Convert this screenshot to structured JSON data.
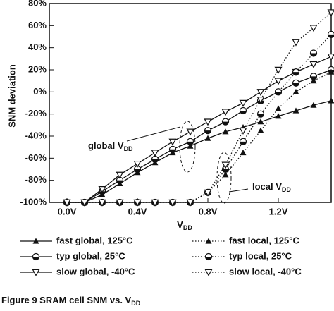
{
  "chart_data": {
    "type": "line",
    "x_label": {
      "text": "V",
      "sub": "DD"
    },
    "y_label": "SNM deviation",
    "caption": {
      "text": "Figure 9   SRAM cell SNM vs. V",
      "sub": "DD"
    },
    "annotations": [
      {
        "text": "global V",
        "sub": "DD"
      },
      {
        "text": "local V",
        "sub": "DD"
      }
    ],
    "x": [
      0,
      0.1,
      0.2,
      0.3,
      0.4,
      0.5,
      0.6,
      0.7,
      0.8,
      0.9,
      1.0,
      1.1,
      1.2,
      1.3,
      1.4,
      1.5
    ],
    "xlim": [
      -0.1,
      1.5
    ],
    "xticks": [
      {
        "value": 0,
        "label": "0.0V"
      },
      {
        "value": 0.4,
        "label": "0.4V"
      },
      {
        "value": 0.8,
        "label": "0.8V"
      },
      {
        "value": 1.2,
        "label": "1.2V"
      }
    ],
    "ylim": [
      -100,
      80
    ],
    "yticks": [
      {
        "value": -100,
        "label": "-100%"
      },
      {
        "value": -80,
        "label": "-80%"
      },
      {
        "value": -60,
        "label": "-60%"
      },
      {
        "value": -40,
        "label": "-40%"
      },
      {
        "value": -20,
        "label": "-20%"
      },
      {
        "value": 0,
        "label": "0%"
      },
      {
        "value": 20,
        "label": "20%"
      },
      {
        "value": 40,
        "label": "40%"
      },
      {
        "value": 60,
        "label": "60%"
      },
      {
        "value": 80,
        "label": "80%"
      }
    ],
    "series": [
      {
        "name": "fast global,  125°C",
        "color": "#111",
        "marker": "triangle-up-filled",
        "line": "solid",
        "values": [
          -100,
          -100,
          -93,
          -83,
          -73,
          -64,
          -55,
          -49,
          -42,
          -36,
          -32,
          -27,
          -22,
          -17,
          -12,
          -8
        ]
      },
      {
        "name": "typ global,    25°C",
        "color": "#111",
        "marker": "circle-half",
        "line": "solid",
        "values": [
          -100,
          -100,
          -90,
          -80,
          -70,
          -61,
          -52,
          -45,
          -35,
          -27,
          -17,
          -8,
          0,
          8,
          14,
          20
        ]
      },
      {
        "name": "slow global, -40°C",
        "color": "#111",
        "marker": "triangle-down-open",
        "line": "solid",
        "values": [
          -100,
          -100,
          -88,
          -75,
          -65,
          -55,
          -45,
          -36,
          -27,
          -18,
          -10,
          0,
          10,
          18,
          25,
          32
        ]
      },
      {
        "name": "fast local,   125°C",
        "color": "#111",
        "marker": "triangle-up-filled",
        "line": "dotted",
        "values": [
          -100,
          -100,
          -100,
          -100,
          -100,
          -100,
          -100,
          -100,
          -91,
          -75,
          -55,
          -35,
          -15,
          0,
          10,
          18
        ]
      },
      {
        "name": "typ local,     25°C",
        "color": "#111",
        "marker": "circle-half",
        "line": "dotted",
        "values": [
          -100,
          -100,
          -100,
          -100,
          -100,
          -100,
          -100,
          -100,
          -91,
          -70,
          -45,
          -20,
          0,
          18,
          35,
          52
        ]
      },
      {
        "name": "slow local,  -40°C",
        "color": "#111",
        "marker": "triangle-down-open",
        "line": "dotted",
        "values": [
          -100,
          -100,
          -100,
          -100,
          -100,
          -100,
          -100,
          -100,
          -91,
          -66,
          -35,
          -7,
          20,
          45,
          58,
          72
        ]
      }
    ]
  }
}
